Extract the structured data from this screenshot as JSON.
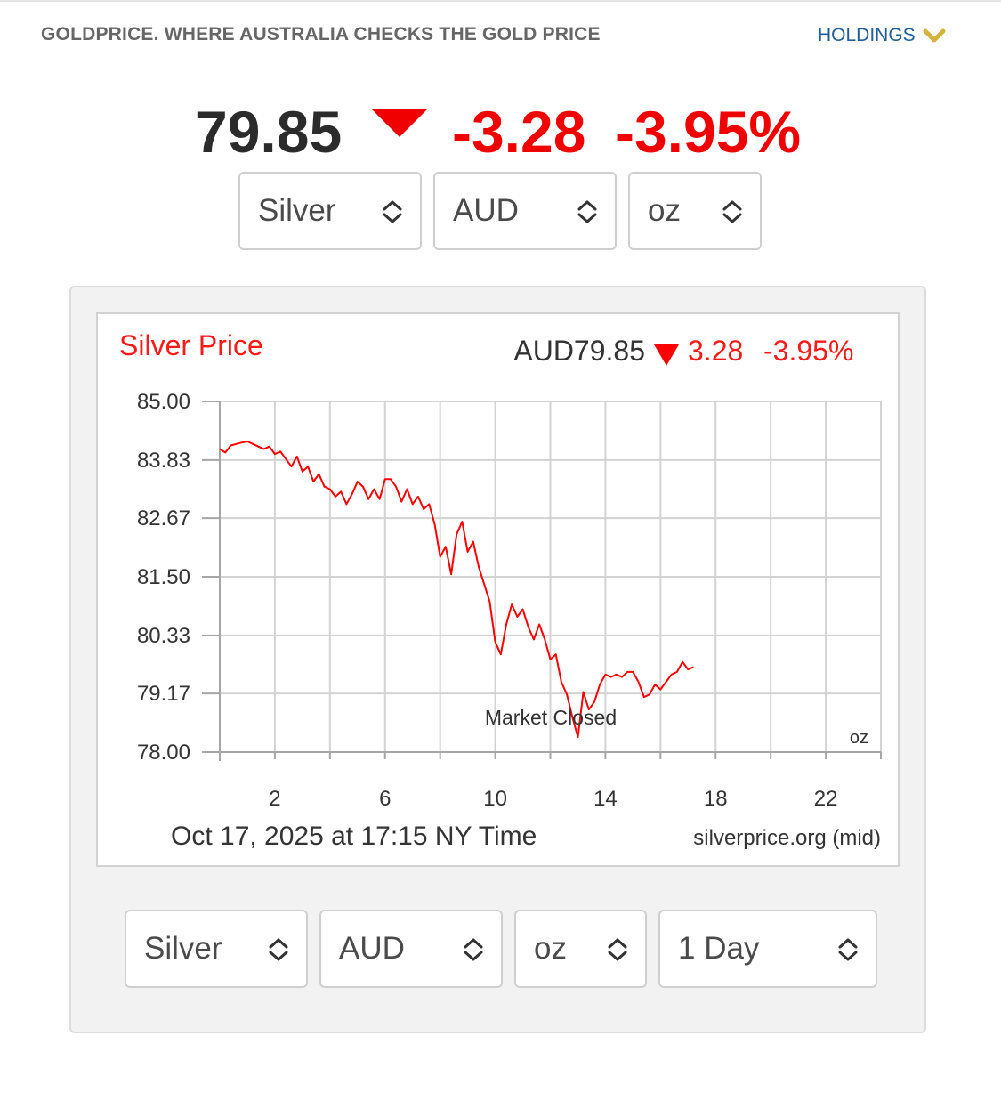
{
  "header": {
    "site_title": "GOLDPRICE. WHERE AUSTRALIA CHECKS THE GOLD PRICE",
    "holdings_label": "HOLDINGS",
    "accent_color": "#d4b23c"
  },
  "ticker": {
    "price": "79.85",
    "change": "-3.28",
    "change_pct": "-3.95%",
    "direction": "down",
    "down_color": "#f00000"
  },
  "top_selectors": {
    "metal": "Silver",
    "currency": "AUD",
    "unit": "oz"
  },
  "bottom_selectors": {
    "metal": "Silver",
    "currency": "AUD",
    "unit": "oz",
    "range": "1 Day"
  },
  "chart_data": {
    "type": "line",
    "title": "Silver Price",
    "summary_price": "AUD79.85",
    "summary_change": "3.28",
    "summary_pct": "-3.95%",
    "annotation": "Market Closed",
    "unit_label": "oz",
    "timestamp": "Oct 17, 2025 at 17:15 NY Time",
    "source": "silverprice.org (mid)",
    "ylim": [
      78.0,
      85.0
    ],
    "xlim": [
      0,
      24
    ],
    "y_ticks": [
      "85.00",
      "83.83",
      "82.67",
      "81.50",
      "80.33",
      "79.17",
      "78.00"
    ],
    "x_ticks": [
      "2",
      "6",
      "10",
      "14",
      "18",
      "22"
    ],
    "grid": true,
    "line_color": "#ff0000",
    "series": [
      {
        "x": [
          0,
          0.2,
          0.4,
          0.6,
          0.8,
          1.0,
          1.2,
          1.4,
          1.6,
          1.8,
          2.0,
          2.2,
          2.4,
          2.6,
          2.8,
          3.0,
          3.2,
          3.4,
          3.6,
          3.8,
          4.0,
          4.2,
          4.4,
          4.6,
          4.8,
          5.0,
          5.2,
          5.4,
          5.6,
          5.8,
          6.0,
          6.2,
          6.4,
          6.6,
          6.8,
          7.0,
          7.2,
          7.4,
          7.6,
          7.8,
          8.0,
          8.2,
          8.4,
          8.6,
          8.8,
          9.0,
          9.2,
          9.4,
          9.6,
          9.8,
          10.0,
          10.2,
          10.4,
          10.6,
          10.8,
          11.0,
          11.2,
          11.4,
          11.6,
          11.8,
          12.0,
          12.2,
          12.4,
          12.6,
          12.8,
          13.0,
          13.2,
          13.4,
          13.6,
          13.8,
          14.0,
          14.2,
          14.4,
          14.6,
          14.8,
          15.0,
          15.2,
          15.4,
          15.6,
          15.8,
          16.0,
          16.2,
          16.4,
          16.6,
          16.8,
          17.0,
          17.2
        ],
        "y": [
          84.05,
          83.98,
          84.12,
          84.15,
          84.18,
          84.2,
          84.15,
          84.1,
          84.05,
          84.1,
          83.95,
          84.0,
          83.85,
          83.7,
          83.9,
          83.6,
          83.7,
          83.4,
          83.55,
          83.3,
          83.25,
          83.1,
          83.2,
          82.95,
          83.15,
          83.4,
          83.3,
          83.05,
          83.25,
          83.05,
          83.45,
          83.45,
          83.3,
          83.0,
          83.25,
          82.95,
          83.1,
          82.85,
          82.95,
          82.55,
          81.9,
          82.1,
          81.55,
          82.35,
          82.6,
          82.0,
          82.2,
          81.7,
          81.35,
          81.0,
          80.2,
          79.95,
          80.55,
          80.95,
          80.7,
          80.85,
          80.5,
          80.25,
          80.55,
          80.25,
          79.85,
          79.95,
          79.4,
          79.15,
          78.7,
          78.3,
          79.2,
          78.85,
          79.0,
          79.35,
          79.55,
          79.5,
          79.55,
          79.5,
          79.6,
          79.6,
          79.4,
          79.1,
          79.15,
          79.35,
          79.25,
          79.4,
          79.55,
          79.6,
          79.8,
          79.65,
          79.7
        ]
      }
    ]
  }
}
